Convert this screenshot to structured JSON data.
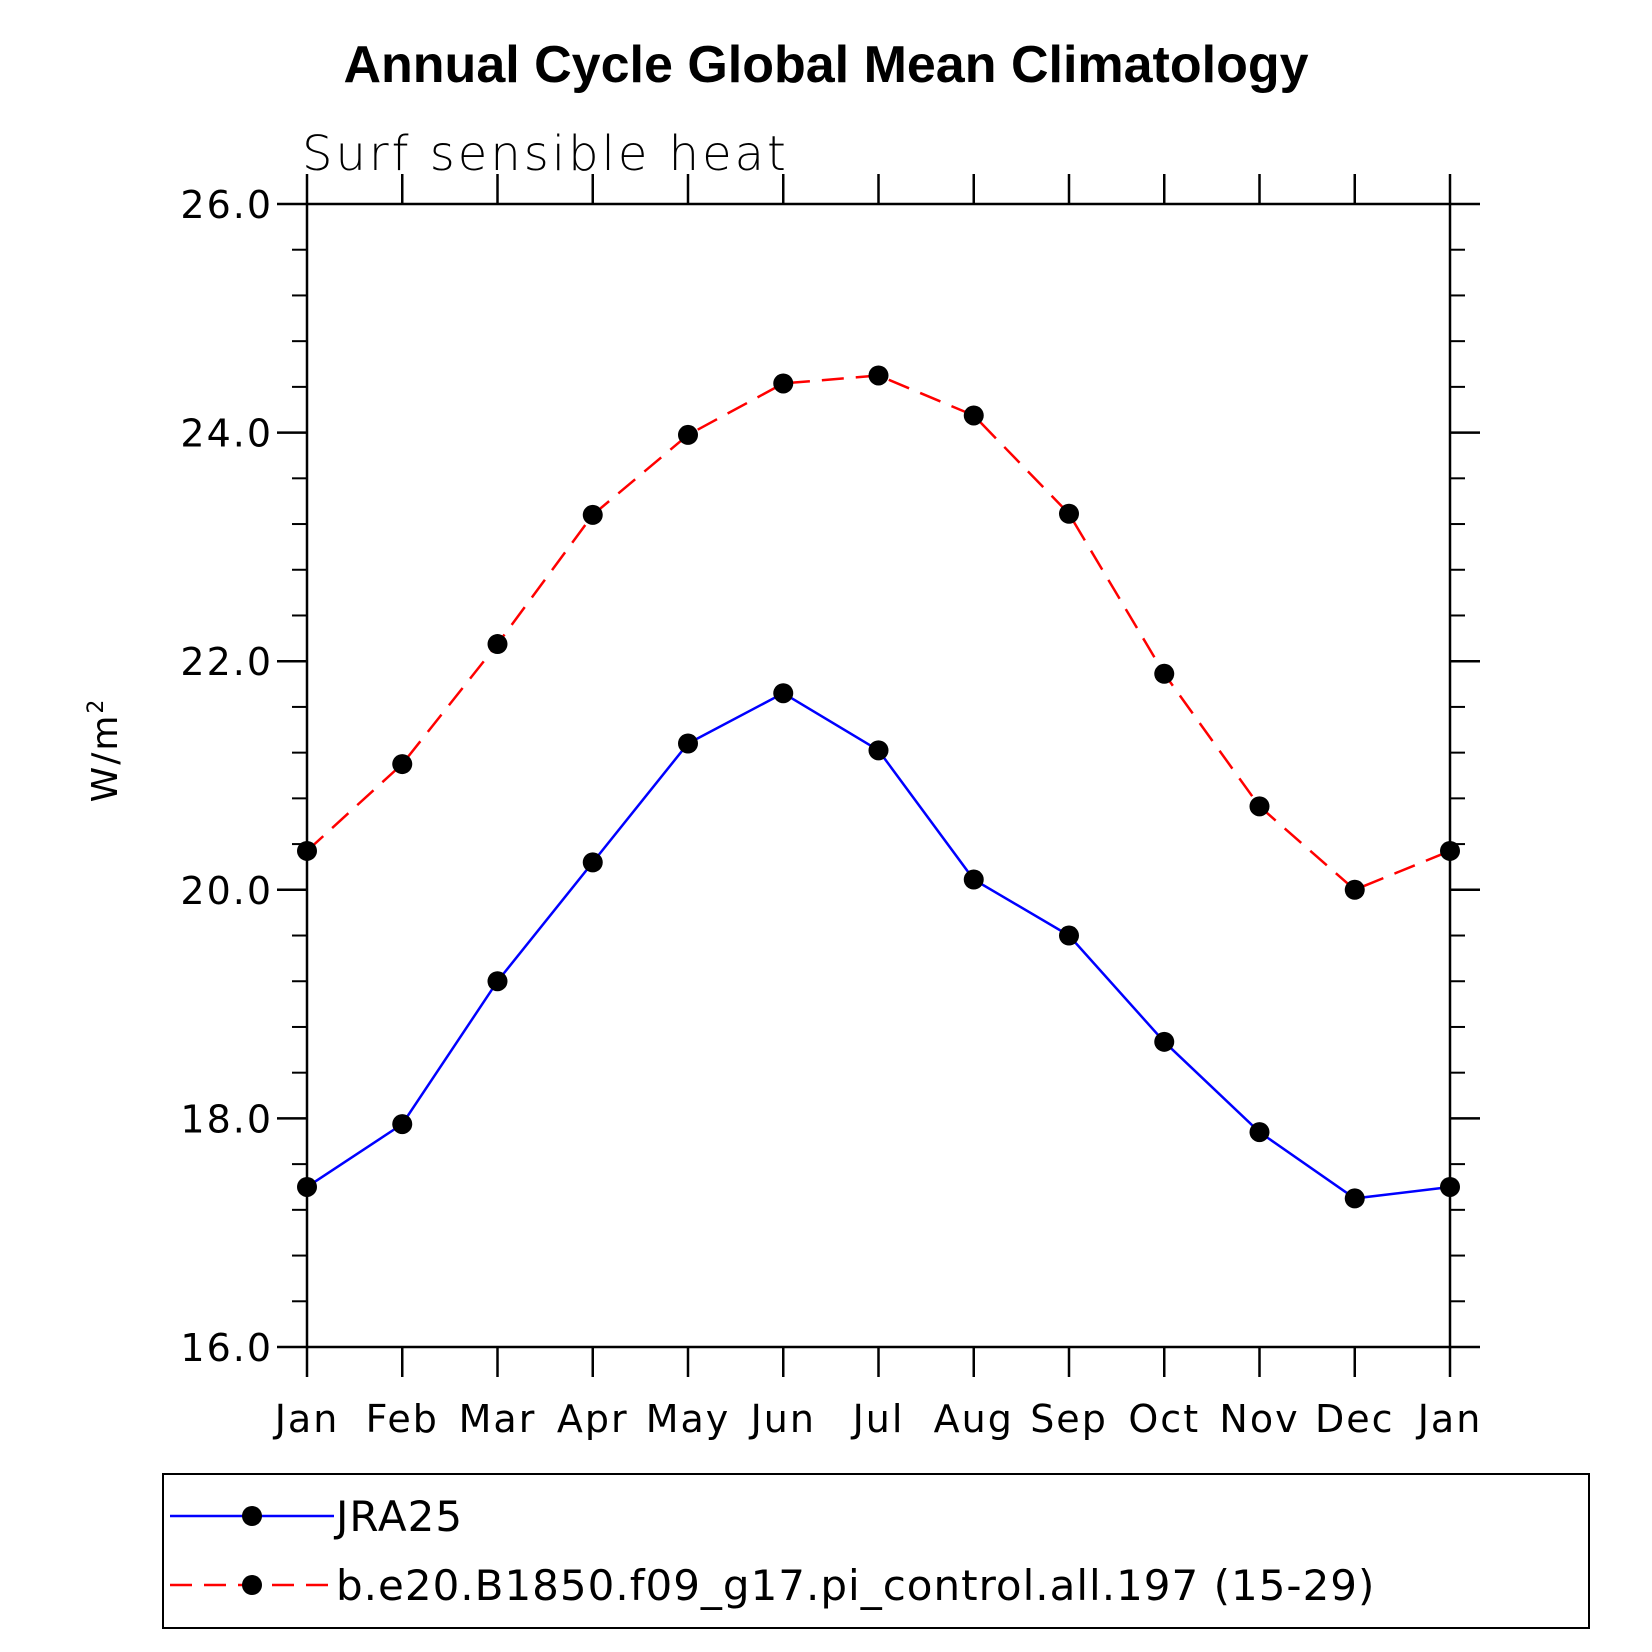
{
  "chart_data": {
    "type": "line",
    "title": "Annual Cycle Global Mean Climatology",
    "subtitle": "Surf sensible heat",
    "xlabel": "",
    "ylabel": "W/m",
    "ylabel_superscript": "2",
    "categories": [
      "Jan",
      "Feb",
      "Mar",
      "Apr",
      "May",
      "Jun",
      "Jul",
      "Aug",
      "Sep",
      "Oct",
      "Nov",
      "Dec",
      "Jan"
    ],
    "ylim": [
      16.0,
      26.0
    ],
    "yticks": [
      "16.0",
      "18.0",
      "20.0",
      "22.0",
      "24.0",
      "26.0"
    ],
    "ytick_values": [
      16,
      18,
      20,
      22,
      24,
      26
    ],
    "series": [
      {
        "name": "JRA25",
        "color": "#0000ff",
        "dash": "solid",
        "values": [
          17.4,
          17.95,
          19.2,
          20.24,
          21.28,
          21.72,
          21.22,
          20.09,
          19.6,
          18.67,
          17.88,
          17.3,
          17.4
        ]
      },
      {
        "name": "b.e20.B1850.f09_g17.pi_control.all.197 (15-29)",
        "color": "#ff0000",
        "dash": "dashed",
        "values": [
          20.34,
          21.1,
          22.15,
          23.28,
          23.98,
          24.43,
          24.5,
          24.15,
          23.29,
          21.89,
          20.73,
          20.0,
          20.34
        ]
      }
    ],
    "marker_color": "#000000"
  }
}
